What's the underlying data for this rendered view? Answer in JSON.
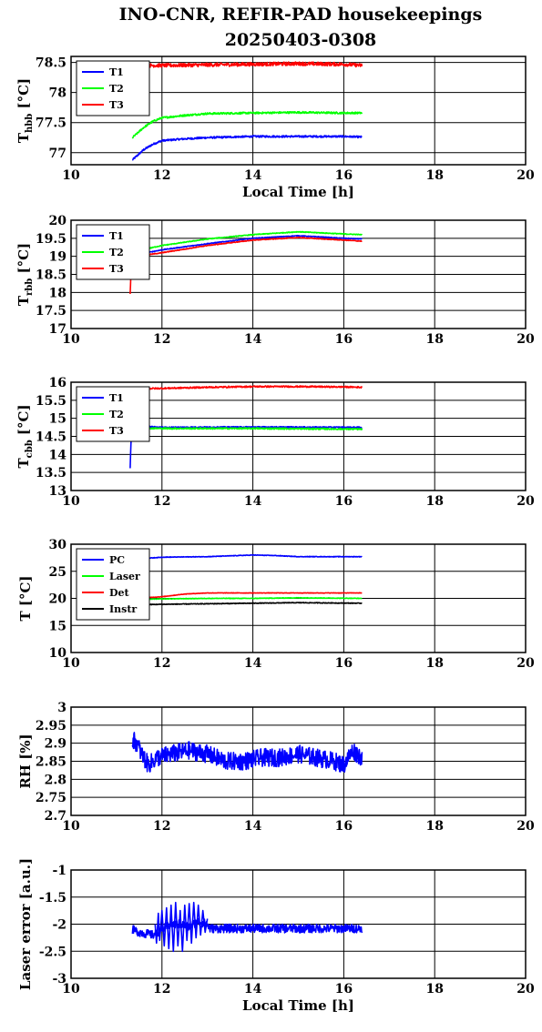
{
  "title": "INO-CNR, REFIR-PAD housekeepings",
  "subtitle": "20250403-0308",
  "chart_data": [
    {
      "type": "line",
      "ylabel": "T",
      "ylabel_sub": "hbb",
      "ylabel_unit": "[°C]",
      "xlabel": "Local Time [h]",
      "xlim": [
        10,
        20
      ],
      "ylim": [
        76.8,
        78.6
      ],
      "yticks": [
        77,
        77.5,
        78,
        78.5
      ],
      "grid": true,
      "legend": "top-left",
      "series": [
        {
          "name": "T1",
          "color": "#0000ff",
          "noise": 0.015,
          "x": [
            11.35,
            11.6,
            11.8,
            12.0,
            12.5,
            13.0,
            14.0,
            15.0,
            16.0,
            16.4
          ],
          "y": [
            76.88,
            77.05,
            77.14,
            77.2,
            77.23,
            77.25,
            77.27,
            77.27,
            77.27,
            77.26
          ]
        },
        {
          "name": "T2",
          "color": "#00ff00",
          "noise": 0.015,
          "x": [
            11.35,
            11.6,
            11.8,
            12.0,
            12.5,
            13.0,
            14.0,
            15.0,
            16.0,
            16.4
          ],
          "y": [
            77.25,
            77.42,
            77.52,
            77.58,
            77.62,
            77.65,
            77.66,
            77.67,
            77.66,
            77.66
          ]
        },
        {
          "name": "T3",
          "color": "#ff0000",
          "noise": 0.03,
          "x": [
            11.35,
            12.0,
            13.0,
            14.0,
            15.0,
            16.0,
            16.4
          ],
          "y": [
            78.45,
            78.45,
            78.46,
            78.47,
            78.48,
            78.47,
            78.45
          ]
        }
      ]
    },
    {
      "type": "line",
      "ylabel": "T",
      "ylabel_sub": "rbb",
      "ylabel_unit": "[°C]",
      "xlabel": "",
      "xlim": [
        10,
        20
      ],
      "ylim": [
        17,
        20
      ],
      "yticks": [
        17,
        17.5,
        18,
        18.5,
        19,
        19.5,
        20
      ],
      "grid": true,
      "legend": "top-left",
      "series": [
        {
          "name": "T1",
          "color": "#0000ff",
          "noise": 0.01,
          "x": [
            11.35,
            11.45,
            12.0,
            13.0,
            14.0,
            15.0,
            16.0,
            16.4
          ],
          "y": [
            18.95,
            19.05,
            19.18,
            19.35,
            19.5,
            19.57,
            19.5,
            19.48
          ]
        },
        {
          "name": "T2",
          "color": "#00ff00",
          "noise": 0.01,
          "x": [
            11.35,
            11.45,
            12.0,
            13.0,
            14.0,
            15.0,
            16.0,
            16.4
          ],
          "y": [
            19.05,
            19.15,
            19.3,
            19.48,
            19.6,
            19.68,
            19.62,
            19.6
          ]
        },
        {
          "name": "T3",
          "color": "#ff0000",
          "noise": 0.01,
          "x": [
            11.3,
            11.32,
            11.35,
            11.45,
            12.0,
            13.0,
            14.0,
            15.0,
            16.0,
            16.4
          ],
          "y": [
            17.95,
            18.6,
            19.0,
            19.0,
            19.1,
            19.3,
            19.45,
            19.52,
            19.45,
            19.42
          ]
        }
      ]
    },
    {
      "type": "line",
      "ylabel": "T",
      "ylabel_sub": "cbb",
      "ylabel_unit": "[°C]",
      "xlabel": "",
      "xlim": [
        10,
        20
      ],
      "ylim": [
        13,
        16
      ],
      "yticks": [
        13,
        13.5,
        14,
        14.5,
        15,
        15.5,
        16
      ],
      "grid": true,
      "legend": "top-left",
      "series": [
        {
          "name": "T1",
          "color": "#0000ff",
          "noise": 0.015,
          "x": [
            11.3,
            11.32,
            11.35,
            11.5,
            12.0,
            14.0,
            16.4
          ],
          "y": [
            13.62,
            14.4,
            14.75,
            14.78,
            14.75,
            14.76,
            14.75
          ]
        },
        {
          "name": "T2",
          "color": "#00ff00",
          "noise": 0.02,
          "x": [
            11.3,
            11.35,
            11.5,
            12.0,
            14.0,
            16.4
          ],
          "y": [
            14.6,
            14.75,
            14.73,
            14.72,
            14.72,
            14.7
          ]
        },
        {
          "name": "T3",
          "color": "#ff0000",
          "noise": 0.02,
          "x": [
            11.35,
            12.0,
            13.0,
            14.0,
            15.0,
            16.0,
            16.4
          ],
          "y": [
            15.82,
            15.83,
            15.86,
            15.88,
            15.88,
            15.87,
            15.86
          ]
        }
      ]
    },
    {
      "type": "line",
      "ylabel": "T [°C]",
      "ylabel_sub": "",
      "ylabel_unit": "",
      "xlabel": "",
      "xlim": [
        10,
        20
      ],
      "ylim": [
        10,
        30
      ],
      "yticks": [
        10,
        15,
        20,
        25,
        30
      ],
      "grid": true,
      "legend": "top-left",
      "series": [
        {
          "name": "PC",
          "color": "#0000ff",
          "noise": 0.05,
          "x": [
            11.35,
            11.5,
            12.0,
            13.0,
            14.0,
            14.5,
            15.0,
            16.0,
            16.4
          ],
          "y": [
            27.0,
            27.3,
            27.6,
            27.7,
            28.0,
            27.9,
            27.7,
            27.7,
            27.7
          ]
        },
        {
          "name": "Laser",
          "color": "#00ff00",
          "noise": 0.05,
          "x": [
            11.35,
            12.0,
            13.0,
            14.0,
            15.0,
            16.4
          ],
          "y": [
            19.8,
            19.9,
            20.0,
            20.0,
            20.1,
            20.0
          ]
        },
        {
          "name": "Det",
          "color": "#ff0000",
          "noise": 0.04,
          "x": [
            11.35,
            12.0,
            12.5,
            13.0,
            14.0,
            15.0,
            16.4
          ],
          "y": [
            20.0,
            20.3,
            20.8,
            21.0,
            21.0,
            21.0,
            21.0
          ]
        },
        {
          "name": "Instr",
          "color": "#000000",
          "noise": 0.06,
          "x": [
            11.35,
            12.0,
            13.0,
            14.0,
            15.0,
            16.4
          ],
          "y": [
            18.8,
            18.9,
            19.0,
            19.1,
            19.2,
            19.1
          ]
        }
      ]
    },
    {
      "type": "line",
      "ylabel": "RH [%]",
      "ylabel_sub": "",
      "ylabel_unit": "",
      "xlabel": "",
      "xlim": [
        10,
        20
      ],
      "ylim": [
        2.7,
        3.0
      ],
      "yticks": [
        2.7,
        2.75,
        2.8,
        2.85,
        2.9,
        2.95,
        3
      ],
      "grid": true,
      "series": [
        {
          "name": "",
          "color": "#0000ff",
          "noise": 0.025,
          "x": [
            11.35,
            11.45,
            11.55,
            11.7,
            11.9,
            12.2,
            12.6,
            13.0,
            13.4,
            13.8,
            14.2,
            14.6,
            15.0,
            15.4,
            15.8,
            16.0,
            16.2,
            16.4
          ],
          "y": [
            2.91,
            2.9,
            2.87,
            2.84,
            2.86,
            2.87,
            2.88,
            2.87,
            2.85,
            2.85,
            2.86,
            2.86,
            2.87,
            2.86,
            2.85,
            2.84,
            2.88,
            2.86
          ]
        }
      ]
    },
    {
      "type": "line",
      "ylabel": "Laser error [a.u.]",
      "ylabel_sub": "",
      "ylabel_unit": "",
      "xlabel": "Local Time [h]",
      "xlim": [
        10,
        20
      ],
      "ylim": [
        -3,
        -1
      ],
      "yticks": [
        -3,
        -2.5,
        -2,
        -1.5,
        -1
      ],
      "grid": true,
      "series": [
        {
          "name": "",
          "color": "#0000ff",
          "noise": 0.08,
          "x": [
            11.35,
            11.5,
            11.8,
            12.0,
            12.2,
            12.4,
            12.6,
            12.8,
            13.0,
            13.05,
            13.5,
            14.0,
            15.0,
            16.0,
            16.4
          ],
          "y": [
            -2.1,
            -2.15,
            -2.2,
            -2.1,
            -2.0,
            -2.0,
            -2.05,
            -1.95,
            -2.0,
            -2.08,
            -2.08,
            -2.08,
            -2.08,
            -2.08,
            -2.08
          ]
        },
        {
          "name": "",
          "color": "#0000ff",
          "noise": 0.0,
          "x": [
            11.85,
            11.88,
            11.92,
            11.95,
            12.0,
            12.05,
            12.1,
            12.15,
            12.2,
            12.25,
            12.3,
            12.35,
            12.4,
            12.45,
            12.5,
            12.55,
            12.6,
            12.65,
            12.7,
            12.75,
            12.8,
            12.85,
            12.9,
            12.95,
            13.0
          ],
          "y": [
            -2.0,
            -2.35,
            -1.8,
            -2.3,
            -1.75,
            -2.4,
            -1.7,
            -2.45,
            -1.65,
            -2.5,
            -1.6,
            -2.4,
            -1.75,
            -2.5,
            -1.65,
            -2.3,
            -1.62,
            -2.35,
            -1.6,
            -2.25,
            -1.65,
            -2.2,
            -1.75,
            -2.15,
            -1.9
          ]
        }
      ]
    }
  ]
}
